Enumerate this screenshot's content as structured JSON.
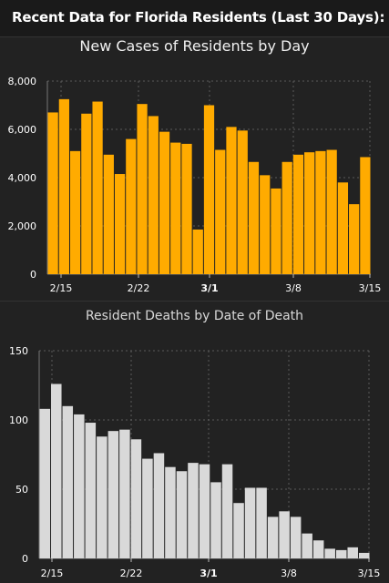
{
  "header": {
    "title": "Recent Data for Florida Residents (Last 30 Days):"
  },
  "colors": {
    "background": "#222222",
    "cases_bar": "#ffab00",
    "deaths_bar": "#d9d9d9",
    "grid": "#5a5a5a",
    "text": "#ffffff"
  },
  "chart_data": [
    {
      "type": "bar",
      "title": "New Cases of Residents by Day",
      "xlabel": "",
      "ylabel": "",
      "x_tick_labels": [
        "2/15",
        "2/22",
        "3/1",
        "3/8",
        "3/15"
      ],
      "bold_tick": "3/1",
      "y_tick_labels": [
        "0",
        "2,000",
        "4,000",
        "6,000",
        "8,000"
      ],
      "ylim": [
        0,
        8000
      ],
      "grid": true,
      "series": [
        {
          "color": "#ffab00",
          "values": [
            6700,
            7250,
            5100,
            6650,
            7150,
            4950,
            4150,
            5600,
            7050,
            6550,
            5900,
            5450,
            5400,
            1850,
            7000,
            5150,
            6100,
            5950,
            4650,
            4100,
            3550,
            4650,
            4950,
            5050,
            5100,
            5150,
            3800,
            2900,
            4850
          ]
        }
      ]
    },
    {
      "type": "bar",
      "title": "Resident Deaths by Date of Death",
      "xlabel": "",
      "ylabel": "",
      "x_tick_labels": [
        "2/15",
        "2/22",
        "3/1",
        "3/8",
        "3/15"
      ],
      "bold_tick": "3/1",
      "y_tick_labels": [
        "0",
        "50",
        "100",
        "150"
      ],
      "ylim": [
        0,
        150
      ],
      "grid": true,
      "series": [
        {
          "color": "#d9d9d9",
          "values": [
            108,
            126,
            110,
            104,
            98,
            88,
            92,
            93,
            86,
            72,
            76,
            66,
            63,
            69,
            68,
            55,
            68,
            40,
            51,
            51,
            30,
            34,
            30,
            18,
            13,
            7,
            6,
            8,
            4
          ]
        }
      ]
    }
  ]
}
